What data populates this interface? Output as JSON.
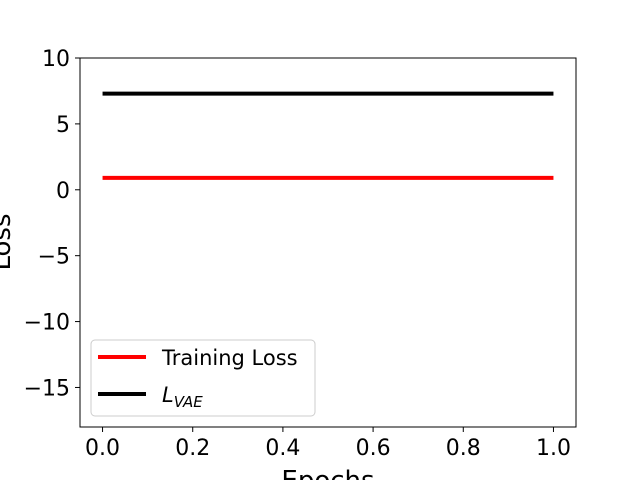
{
  "chart_data": {
    "type": "line",
    "title": "",
    "xlabel": "Epochs",
    "ylabel": "Loss",
    "xlim": [
      -0.05,
      1.05
    ],
    "ylim": [
      -18,
      10
    ],
    "xticks": [
      0.0,
      0.2,
      0.4,
      0.6,
      0.8,
      1.0
    ],
    "xtick_labels": [
      "0.0",
      "0.2",
      "0.4",
      "0.6",
      "0.8",
      "1.0"
    ],
    "yticks": [
      10,
      5,
      0,
      -5,
      -10,
      -15
    ],
    "ytick_labels": [
      "10",
      "5",
      "0",
      "−5",
      "−10",
      "−15"
    ],
    "grid": false,
    "legend_position": "lower-left",
    "series": [
      {
        "name": "Training Loss",
        "label_main": "Training Loss",
        "label_sub": "",
        "color": "#ff0000",
        "x": [
          0.0,
          1.0
        ],
        "y": [
          0.9,
          0.9
        ]
      },
      {
        "name": "L_VAE",
        "label_main": "L",
        "label_sub": "VAE",
        "color": "#000000",
        "x": [
          0.0,
          1.0
        ],
        "y": [
          7.3,
          7.3
        ]
      }
    ]
  }
}
